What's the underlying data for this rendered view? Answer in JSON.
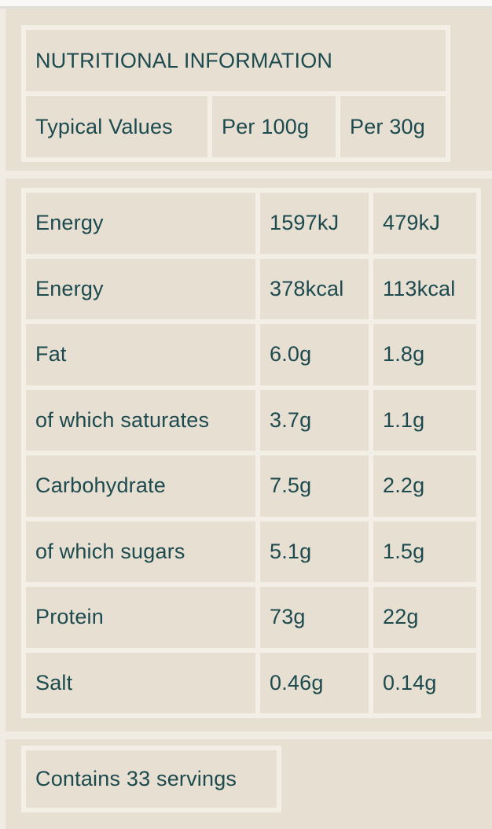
{
  "colors": {
    "page_background": "#f1ece3",
    "panel_background": "#e6dfd2",
    "grid_line": "#f3efe7",
    "text": "#1d4a4e",
    "top_strip": "#f9f8f7"
  },
  "nutrition": {
    "title": "NUTRITIONAL INFORMATION",
    "columns": [
      "Typical Values",
      "Per 100g",
      "Per 30g"
    ],
    "rows": [
      {
        "label": "Energy",
        "per_100g": "1597kJ",
        "per_30g": "479kJ"
      },
      {
        "label": "Energy",
        "per_100g": "378kcal",
        "per_30g": "113kcal"
      },
      {
        "label": "Fat",
        "per_100g": "6.0g",
        "per_30g": "1.8g"
      },
      {
        "label": "of which saturates",
        "per_100g": "3.7g",
        "per_30g": "1.1g"
      },
      {
        "label": "Carbohydrate",
        "per_100g": "7.5g",
        "per_30g": "2.2g"
      },
      {
        "label": "of which sugars",
        "per_100g": "5.1g",
        "per_30g": "1.5g"
      },
      {
        "label": "Protein",
        "per_100g": "73g",
        "per_30g": "22g"
      },
      {
        "label": "Salt",
        "per_100g": "0.46g",
        "per_30g": "0.14g"
      }
    ],
    "servings_note": "Contains 33 servings"
  }
}
